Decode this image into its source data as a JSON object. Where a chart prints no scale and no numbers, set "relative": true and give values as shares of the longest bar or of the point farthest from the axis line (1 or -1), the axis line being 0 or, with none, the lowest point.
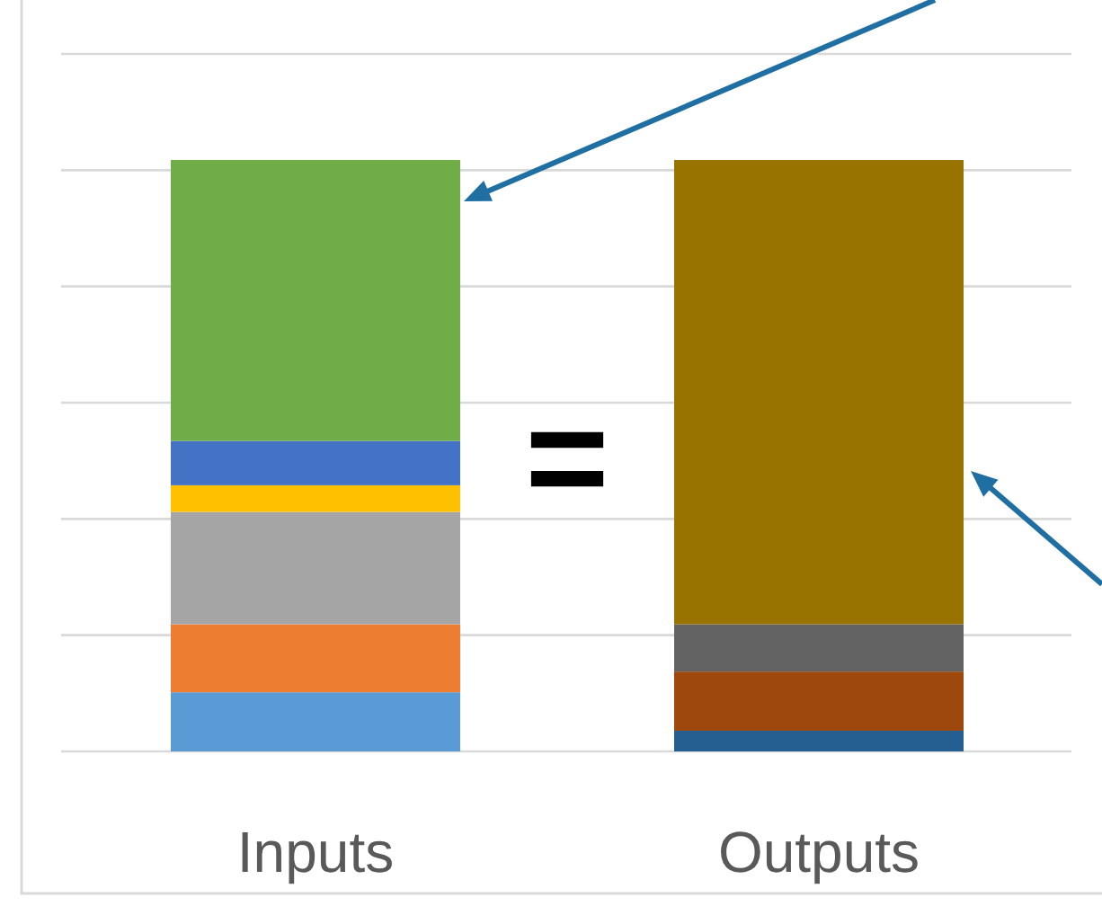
{
  "chart_data": {
    "type": "bar",
    "stacked": true,
    "relative": true,
    "grid": "y",
    "categories": [
      "Inputs",
      "Outputs"
    ],
    "series": [
      {
        "color": "#5b9bd5",
        "values": [
          0.1,
          null
        ]
      },
      {
        "color": "#ed7d31",
        "values": [
          0.115,
          null
        ]
      },
      {
        "color": "#a5a5a5",
        "values": [
          0.19,
          null
        ]
      },
      {
        "color": "#ffc000",
        "values": [
          0.045,
          null
        ]
      },
      {
        "color": "#4472c4",
        "values": [
          0.075,
          null
        ]
      },
      {
        "color": "#70ad47",
        "values": [
          0.475,
          null
        ]
      },
      {
        "color": "#255e91",
        "values": [
          null,
          0.035
        ]
      },
      {
        "color": "#9e480e",
        "values": [
          null,
          0.1
        ]
      },
      {
        "color": "#636363",
        "values": [
          null,
          0.08
        ]
      },
      {
        "color": "#997300",
        "values": [
          null,
          0.785
        ]
      }
    ],
    "annotations": [
      "="
    ]
  }
}
